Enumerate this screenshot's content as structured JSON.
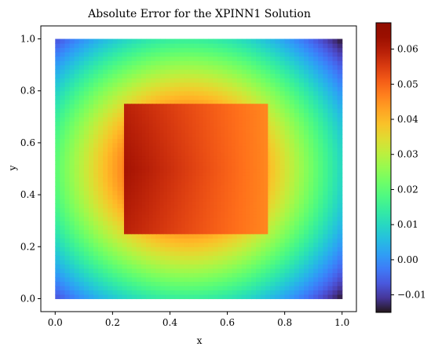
{
  "chart_data": {
    "type": "heatmap",
    "title": "Absolute Error for the XPINN1 Solution",
    "xlabel": "x",
    "ylabel": "y",
    "xlim": [
      -0.05,
      1.05
    ],
    "ylim": [
      -0.05,
      1.05
    ],
    "x_ticks": [
      0.0,
      0.2,
      0.4,
      0.6,
      0.8,
      1.0
    ],
    "x_tick_labels": [
      "0.0",
      "0.2",
      "0.4",
      "0.6",
      "0.8",
      "1.0"
    ],
    "y_ticks": [
      0.0,
      0.2,
      0.4,
      0.6,
      0.8,
      1.0
    ],
    "y_tick_labels": [
      "0.0",
      "0.2",
      "0.4",
      "0.6",
      "0.8",
      "1.0"
    ],
    "grid": false,
    "colormap": "turbo",
    "colorbar": {
      "range": [
        -0.015,
        0.0675
      ],
      "ticks": [
        -0.01,
        0.0,
        0.01,
        0.02,
        0.03,
        0.04,
        0.05,
        0.06
      ],
      "tick_labels": [
        "−0.01",
        "0.00",
        "0.01",
        "0.02",
        "0.03",
        "0.04",
        "0.05",
        "0.06"
      ]
    },
    "domain": {
      "x": [
        0.0,
        1.0
      ],
      "y": [
        0.0,
        1.0
      ]
    },
    "outer_field": {
      "description_free": true,
      "center": [
        0.46,
        0.5
      ],
      "value_at_center": 0.067,
      "value_at_corner": -0.015
    },
    "inner_subdomain": {
      "x": [
        0.24,
        0.74
      ],
      "y": [
        0.25,
        0.75
      ],
      "value_left": 0.062,
      "value_right": 0.046
    }
  }
}
